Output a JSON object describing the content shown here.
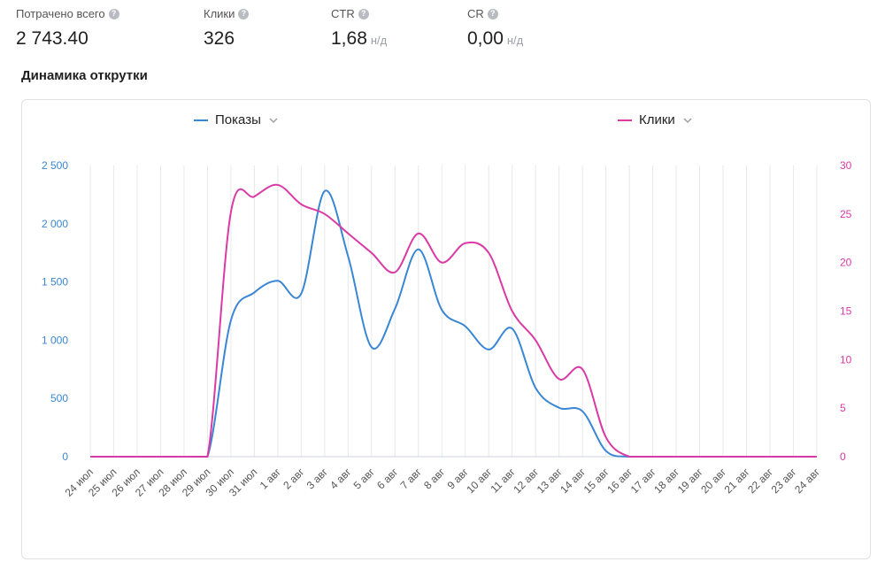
{
  "stats": [
    {
      "label": "Потрачено всего",
      "value": "2 743.40",
      "unit": ""
    },
    {
      "label": "Клики",
      "value": "326",
      "unit": ""
    },
    {
      "label": "CTR",
      "value": "1,68",
      "unit": "н/д"
    },
    {
      "label": "CR",
      "value": "0,00",
      "unit": "н/д"
    }
  ],
  "section_title": "Динамика открутки",
  "colors": {
    "impressions": "#3a86d4",
    "clicks": "#d93aa5",
    "grid": "#e6e8eb"
  },
  "icons": {
    "help": "question-circle-icon",
    "dropdown": "chevron-down-icon"
  },
  "chart_data": {
    "type": "line",
    "legend_position": "top",
    "grid": true,
    "categories": [
      "24 июл",
      "25 июл",
      "26 июл",
      "27 июл",
      "28 июл",
      "29 июл",
      "30 июл",
      "31 июл",
      "1 авг",
      "2 авг",
      "3 авг",
      "4 авг",
      "5 авг",
      "6 авг",
      "7 авг",
      "8 авг",
      "9 авг",
      "10 авг",
      "11 авг",
      "12 авг",
      "13 авг",
      "14 авг",
      "15 авг",
      "16 авг",
      "17 авг",
      "18 авг",
      "19 авг",
      "20 авг",
      "21 авг",
      "22 авг",
      "23 авг",
      "24 авг"
    ],
    "y_left": {
      "ticks": [
        "0",
        "500",
        "1 000",
        "1 500",
        "2 000",
        "2 500"
      ],
      "min": 0,
      "max": 2500
    },
    "y_right": {
      "ticks": [
        "0",
        "5",
        "10",
        "15",
        "20",
        "25",
        "30"
      ],
      "min": 0,
      "max": 30
    },
    "series": [
      {
        "name": "Показы",
        "axis": "left",
        "values": [
          0,
          0,
          0,
          0,
          0,
          0,
          1170,
          1410,
          1510,
          1400,
          2280,
          1720,
          940,
          1270,
          1780,
          1260,
          1120,
          920,
          1100,
          590,
          420,
          390,
          50,
          0,
          0,
          0,
          0,
          0,
          0,
          0,
          0,
          0
        ]
      },
      {
        "name": "Клики",
        "axis": "right",
        "values": [
          0,
          0,
          0,
          0,
          0,
          0,
          25.2,
          26.8,
          28,
          26,
          25,
          23,
          21,
          19,
          23,
          20,
          22,
          21,
          15,
          12,
          8,
          9,
          2,
          0,
          0,
          0,
          0,
          0,
          0,
          0,
          0,
          0
        ]
      }
    ]
  }
}
